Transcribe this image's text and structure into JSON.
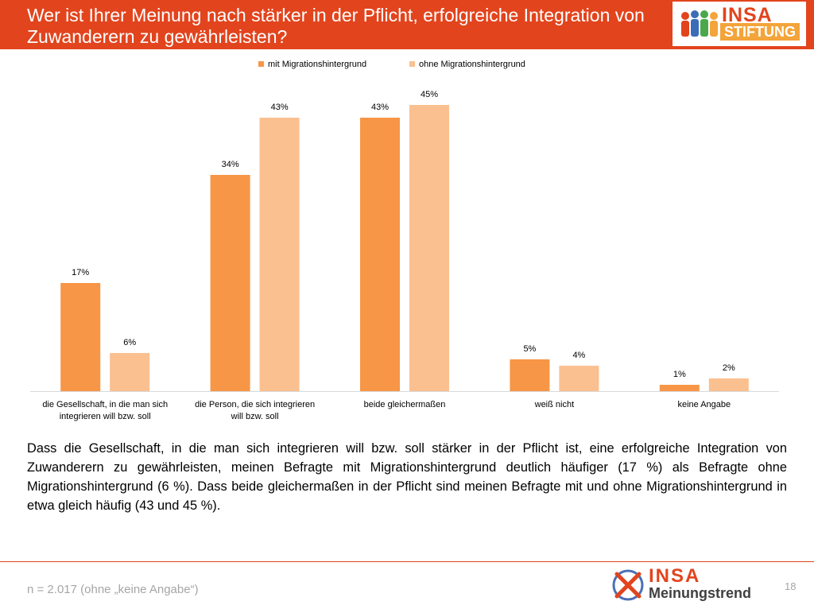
{
  "header": {
    "title": "Wer ist Ihrer Meinung nach stärker in der Pflicht, erfolgreiche Integration von Zuwanderern zu gewährleisten?",
    "logo_word": "INSA",
    "logo_sub": "STIFTUNG"
  },
  "colors": {
    "header_bg": "#e2441d",
    "series_with": "#f79646",
    "series_without": "#fac090",
    "axis": "#d9d9d9"
  },
  "chart_data": {
    "type": "bar",
    "categories": [
      "die Gesellschaft, in die man sich integrieren will bzw. soll",
      "die Person, die sich integrieren will bzw. soll",
      "beide gleichermaßen",
      "weiß nicht",
      "keine Angabe"
    ],
    "category_lines": [
      [
        "die Gesellschaft, in die man sich",
        "integrieren will bzw. soll"
      ],
      [
        "die Person, die sich integrieren",
        "will bzw. soll"
      ],
      [
        "beide gleichermaßen"
      ],
      [
        "weiß nicht"
      ],
      [
        "keine Angabe"
      ]
    ],
    "series": [
      {
        "name": "mit Migrationshintergrund",
        "values": [
          17,
          34,
          43,
          5,
          1
        ]
      },
      {
        "name": "ohne Migrationshintergrund",
        "values": [
          6,
          43,
          45,
          4,
          2
        ]
      }
    ],
    "value_suffix": "%",
    "ylim": [
      0,
      50
    ],
    "legend_position": "top-center",
    "grid": false
  },
  "summary": "Dass die Gesellschaft, in die man sich integrieren will bzw. soll stärker in der Pflicht ist, eine erfolgreiche Integration von Zuwanderern zu gewährleisten, meinen Befragte mit Migrationshintergrund deutlich häufiger (17 %) als Befragte ohne Migrationshintergrund (6 %). Dass beide gleichermaßen in der Pflicht sind meinen Befragte mit und ohne Migrationshintergrund in etwa gleich häufig (43 und 45 %).",
  "footer": {
    "sample_note": "n = 2.017 (ohne „keine Angabe“)",
    "logo_word": "INSA",
    "logo_sub": "Meinungstrend",
    "page_number": "18"
  }
}
